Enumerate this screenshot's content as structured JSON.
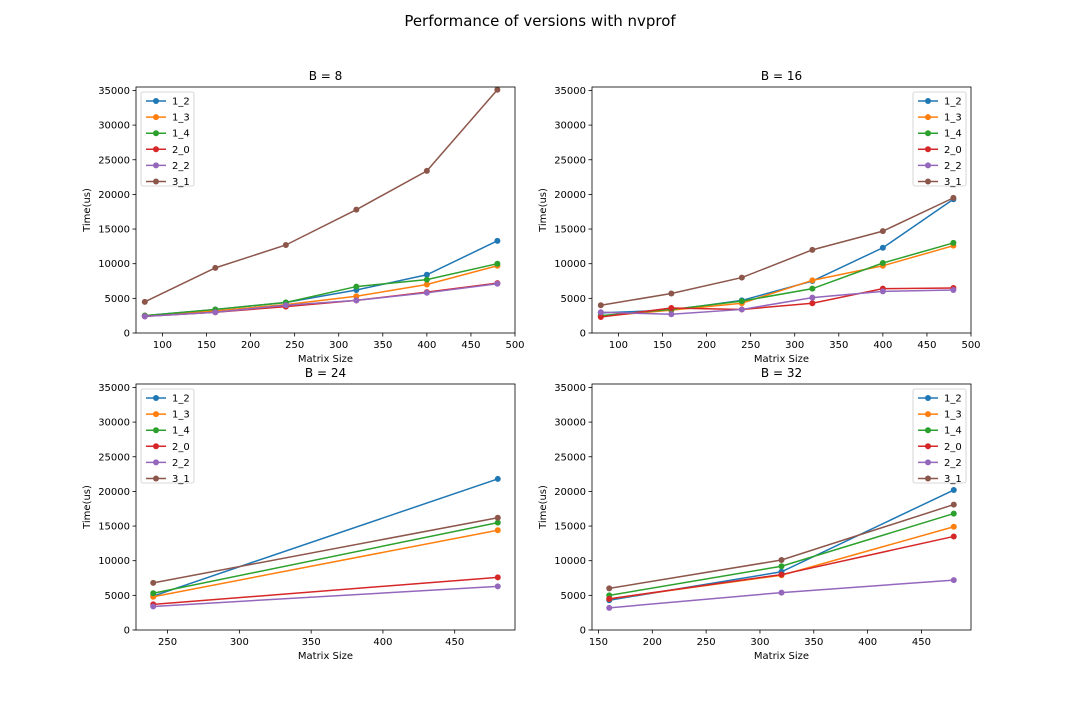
{
  "figure": {
    "suptitle": "Performance of versions with nvprof"
  },
  "chart_data": [
    {
      "type": "line",
      "title": "B = 8",
      "xlabel": "Matrix Size",
      "ylabel": "Time(us)",
      "xlim": [
        70,
        500
      ],
      "ylim": [
        0,
        35500
      ],
      "xticks": [
        100,
        150,
        200,
        250,
        300,
        350,
        400,
        450,
        500
      ],
      "yticks": [
        0,
        5000,
        10000,
        15000,
        20000,
        25000,
        30000,
        35000
      ],
      "legend": "upper-left",
      "x": [
        80,
        160,
        240,
        320,
        400,
        480
      ],
      "series": [
        {
          "name": "1_2",
          "color": "#1f77b4",
          "values": [
            2500,
            3400,
            4400,
            6200,
            8400,
            13300
          ]
        },
        {
          "name": "1_3",
          "color": "#ff7f0e",
          "values": [
            2500,
            3200,
            4100,
            5300,
            7000,
            9700
          ]
        },
        {
          "name": "1_4",
          "color": "#2ca02c",
          "values": [
            2500,
            3400,
            4400,
            6700,
            7700,
            10000
          ]
        },
        {
          "name": "2_0",
          "color": "#d62728",
          "values": [
            2400,
            3000,
            3800,
            4700,
            5900,
            7200
          ]
        },
        {
          "name": "2_2",
          "color": "#9467bd",
          "values": [
            2400,
            3000,
            4000,
            4700,
            5800,
            7100
          ]
        },
        {
          "name": "3_1",
          "color": "#8c564b",
          "values": [
            4500,
            9400,
            12700,
            17800,
            23400,
            35100
          ]
        }
      ]
    },
    {
      "type": "line",
      "title": "B = 16",
      "xlabel": "Matrix Size",
      "ylabel": "Time(us)",
      "xlim": [
        70,
        500
      ],
      "ylim": [
        0,
        35500
      ],
      "xticks": [
        100,
        150,
        200,
        250,
        300,
        350,
        400,
        450,
        500
      ],
      "yticks": [
        0,
        5000,
        10000,
        15000,
        20000,
        25000,
        30000,
        35000
      ],
      "legend": "upper-right",
      "x": [
        80,
        160,
        240,
        320,
        400,
        480
      ],
      "series": [
        {
          "name": "1_2",
          "color": "#1f77b4",
          "values": [
            2900,
            3300,
            4700,
            7500,
            12300,
            19300
          ]
        },
        {
          "name": "1_3",
          "color": "#ff7f0e",
          "values": [
            2400,
            3300,
            4300,
            7600,
            9700,
            12600
          ]
        },
        {
          "name": "1_4",
          "color": "#2ca02c",
          "values": [
            2500,
            3400,
            4600,
            6400,
            10100,
            13000
          ]
        },
        {
          "name": "2_0",
          "color": "#d62728",
          "values": [
            2300,
            3600,
            3400,
            4300,
            6400,
            6500
          ]
        },
        {
          "name": "2_2",
          "color": "#9467bd",
          "values": [
            3000,
            2700,
            3400,
            5100,
            6000,
            6200
          ]
        },
        {
          "name": "3_1",
          "color": "#8c564b",
          "values": [
            4000,
            5700,
            8000,
            12000,
            14700,
            19500
          ]
        }
      ]
    },
    {
      "type": "line",
      "title": "B = 24",
      "xlabel": "Matrix Size",
      "ylabel": "Time(us)",
      "xlim": [
        228,
        492
      ],
      "ylim": [
        0,
        35500
      ],
      "xticks": [
        250,
        300,
        350,
        400,
        450
      ],
      "yticks": [
        0,
        5000,
        10000,
        15000,
        20000,
        25000,
        30000,
        35000
      ],
      "legend": "upper-left",
      "x": [
        240,
        480
      ],
      "series": [
        {
          "name": "1_2",
          "color": "#1f77b4",
          "values": [
            4900,
            21800
          ]
        },
        {
          "name": "1_3",
          "color": "#ff7f0e",
          "values": [
            4800,
            14400
          ]
        },
        {
          "name": "1_4",
          "color": "#2ca02c",
          "values": [
            5300,
            15500
          ]
        },
        {
          "name": "2_0",
          "color": "#d62728",
          "values": [
            3700,
            7600
          ]
        },
        {
          "name": "2_2",
          "color": "#9467bd",
          "values": [
            3400,
            6300
          ]
        },
        {
          "name": "3_1",
          "color": "#8c564b",
          "values": [
            6800,
            16200
          ]
        }
      ]
    },
    {
      "type": "line",
      "title": "B = 32",
      "xlabel": "Matrix Size",
      "ylabel": "Time(us)",
      "xlim": [
        144,
        496
      ],
      "ylim": [
        0,
        35500
      ],
      "xticks": [
        150,
        200,
        250,
        300,
        350,
        400,
        450
      ],
      "yticks": [
        0,
        5000,
        10000,
        15000,
        20000,
        25000,
        30000,
        35000
      ],
      "legend": "upper-right",
      "x": [
        160,
        320,
        480
      ],
      "series": [
        {
          "name": "1_2",
          "color": "#1f77b4",
          "values": [
            4300,
            8400,
            20200
          ]
        },
        {
          "name": "1_3",
          "color": "#ff7f0e",
          "values": [
            4500,
            7900,
            14900
          ]
        },
        {
          "name": "1_4",
          "color": "#2ca02c",
          "values": [
            5000,
            9200,
            16800
          ]
        },
        {
          "name": "2_0",
          "color": "#d62728",
          "values": [
            4500,
            8000,
            13500
          ]
        },
        {
          "name": "2_2",
          "color": "#9467bd",
          "values": [
            3200,
            5400,
            7200
          ]
        },
        {
          "name": "3_1",
          "color": "#8c564b",
          "values": [
            6000,
            10100,
            18100
          ]
        }
      ]
    }
  ]
}
